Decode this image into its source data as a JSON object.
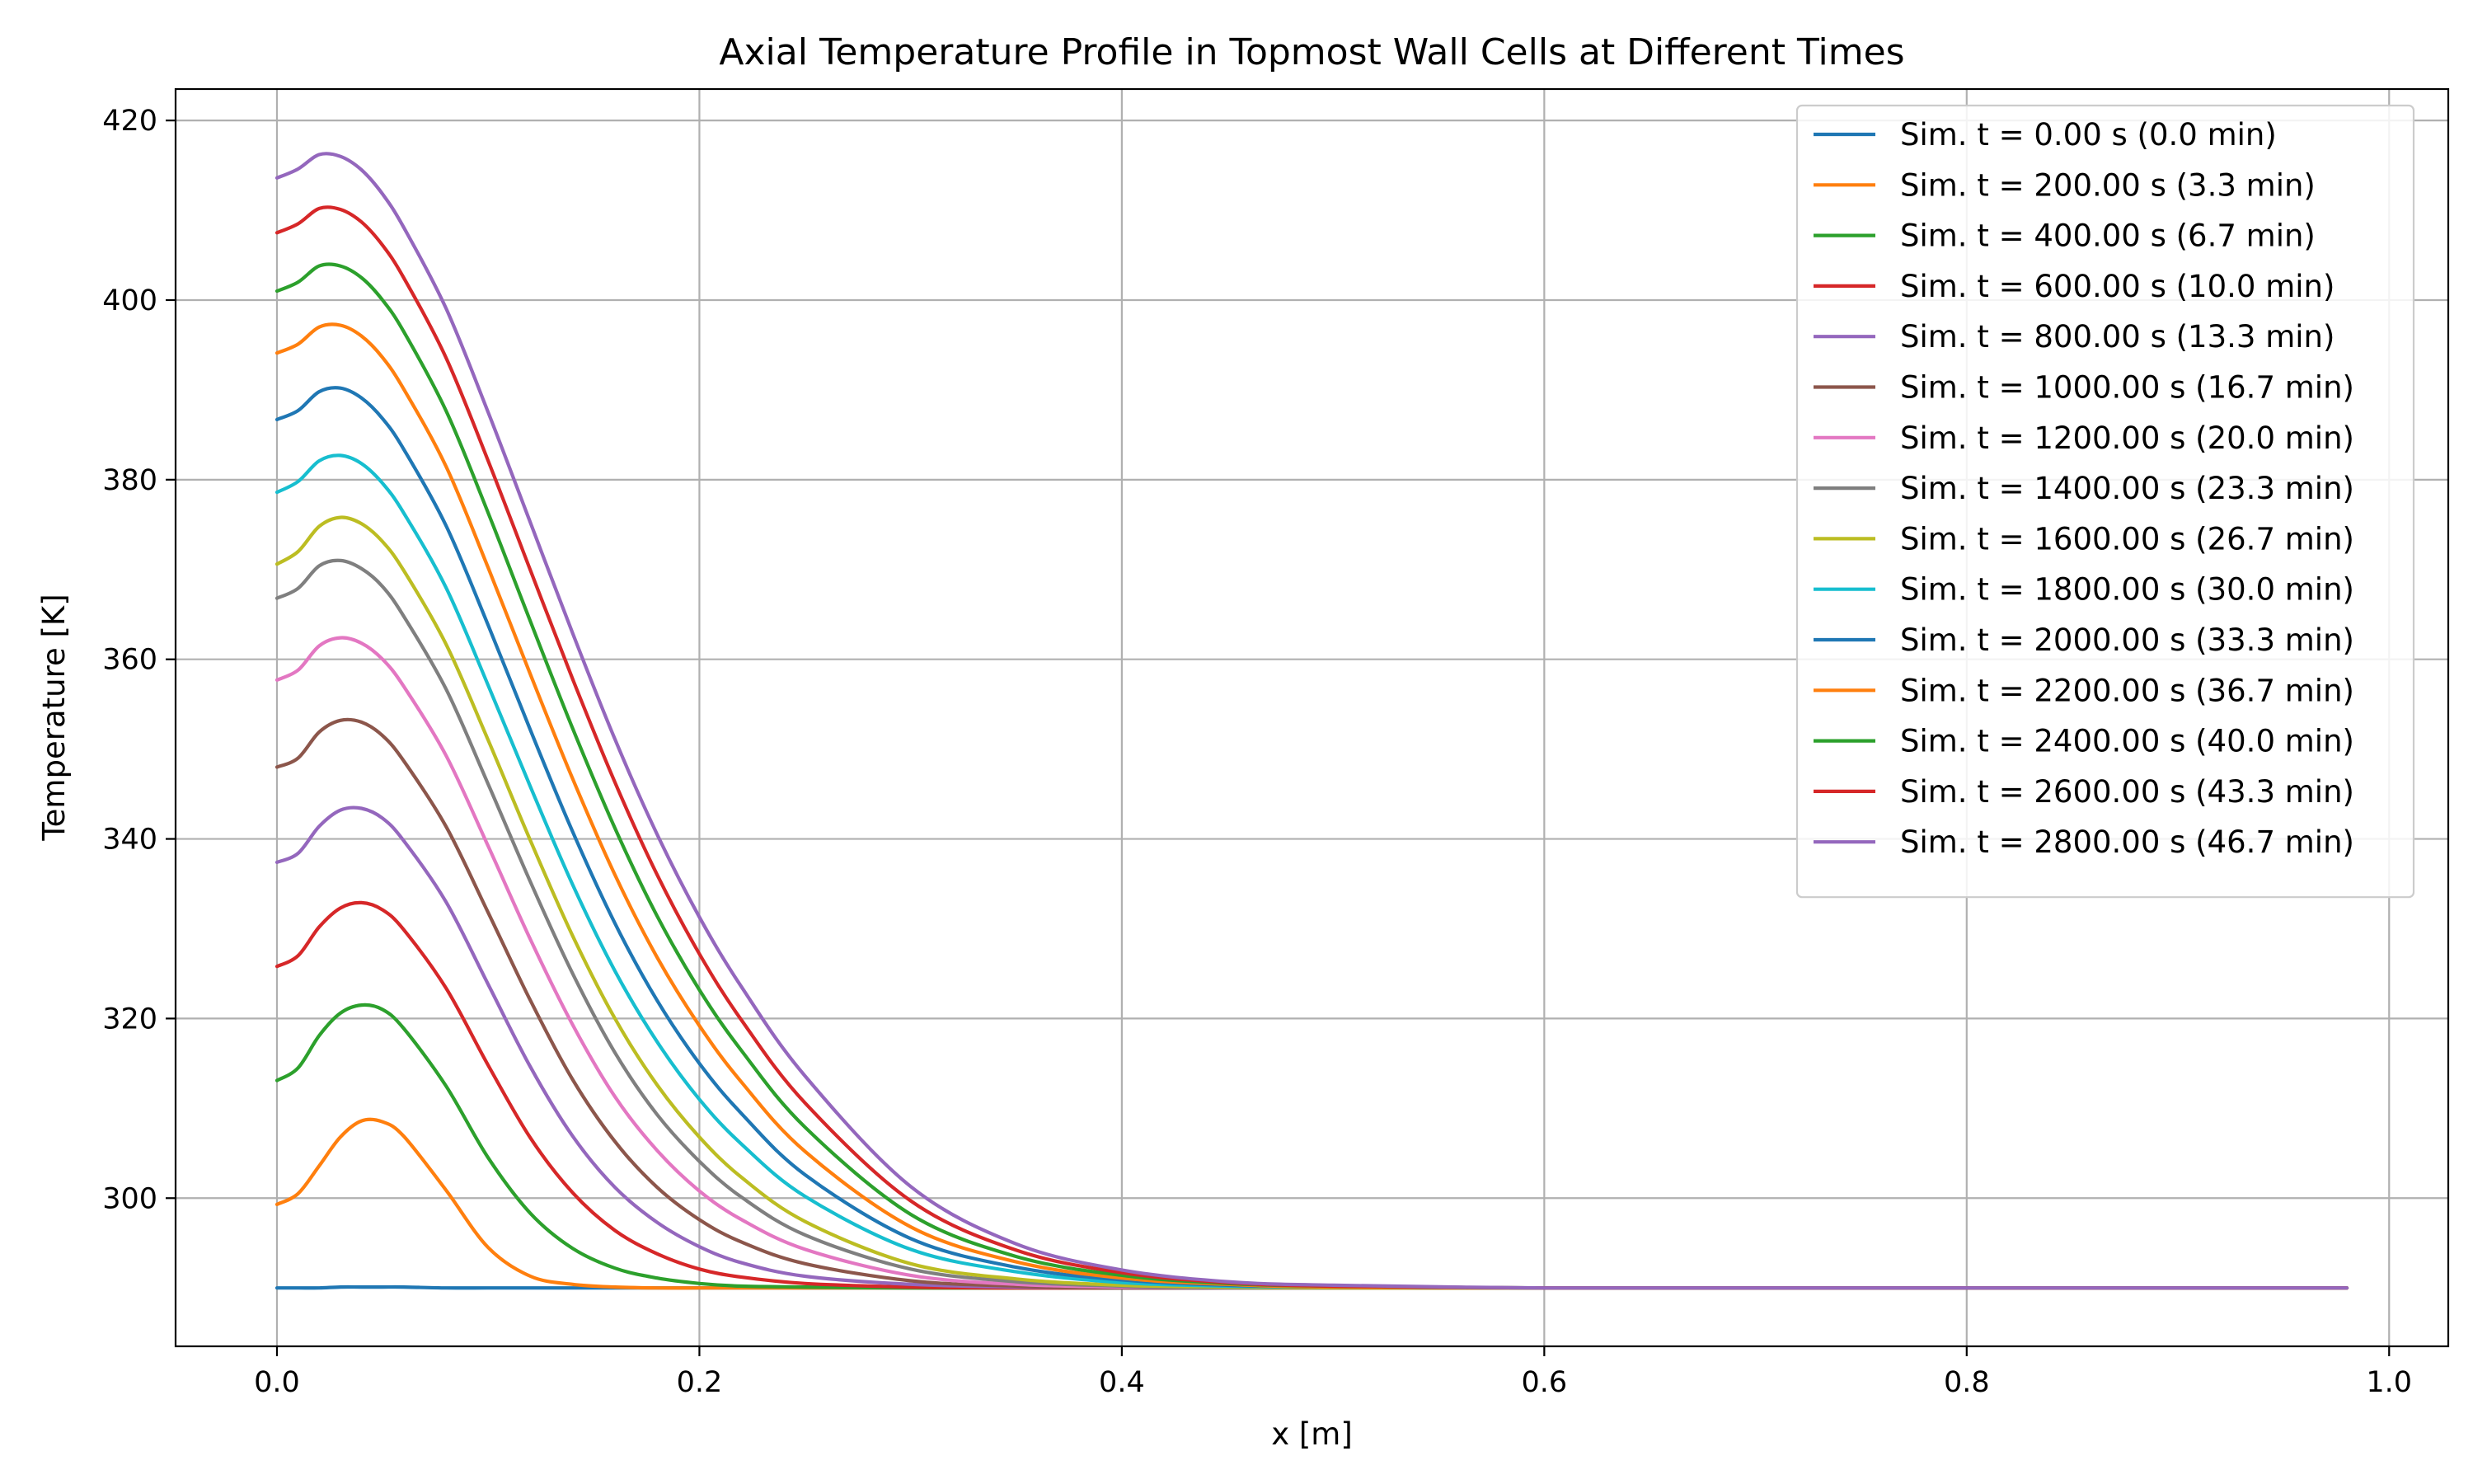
{
  "chart_data": {
    "type": "line",
    "title": "Axial Temperature Profile in Topmost Wall Cells at Different Times",
    "xlabel": "x [m]",
    "ylabel": "Temperature [K]",
    "xlim": [
      -0.048,
      1.028
    ],
    "ylim": [
      283.5,
      423.5
    ],
    "xticks": [
      0.0,
      0.2,
      0.4,
      0.6,
      0.8,
      1.0
    ],
    "xtick_labels": [
      "0.0",
      "0.2",
      "0.4",
      "0.6",
      "0.8",
      "1.0"
    ],
    "yticks": [
      300,
      320,
      340,
      360,
      380,
      400,
      420
    ],
    "ytick_labels": [
      "300",
      "320",
      "340",
      "360",
      "380",
      "400",
      "420"
    ],
    "grid": true,
    "legend_position": "top-right",
    "x": [
      0,
      0.01,
      0.02,
      0.03,
      0.04,
      0.05,
      0.06,
      0.08,
      0.1,
      0.12,
      0.14,
      0.16,
      0.18,
      0.2,
      0.22,
      0.25,
      0.3,
      0.35,
      0.4,
      0.45,
      0.5,
      0.6,
      0.7,
      0.8,
      0.9,
      0.98
    ],
    "series": [
      {
        "name": "Sim. t = 0.00 s (0.0 min)",
        "color": "#1f77b4",
        "values": [
          290.0,
          290.0,
          290.0,
          290.1,
          290.1,
          290.1,
          290.1,
          290.0,
          290.0,
          290.0,
          290.0,
          290.0,
          290.0,
          290.0,
          290.0,
          290.0,
          290.0,
          290.0,
          290.0,
          290.0,
          290.0,
          290.0,
          290.0,
          290.0,
          290.0,
          290.0
        ]
      },
      {
        "name": "Sim. t = 200.00 s (3.3 min)",
        "color": "#ff7f0e",
        "values": [
          299.3,
          300.5,
          303.6,
          306.8,
          308.6,
          308.5,
          306.9,
          300.9,
          294.5,
          291.3,
          290.4,
          290.1,
          290.0,
          290.0,
          290.0,
          290.0,
          290.0,
          290.0,
          290.0,
          290.0,
          290.0,
          290.0,
          290.0,
          290.0,
          290.0,
          290.0
        ]
      },
      {
        "name": "Sim. t = 400.00 s (6.7 min)",
        "color": "#2ca02c",
        "values": [
          313.1,
          314.5,
          318.1,
          320.6,
          321.5,
          321.0,
          318.9,
          312.5,
          304.5,
          298.3,
          294.4,
          292.2,
          291.1,
          290.5,
          290.2,
          290.1,
          290.0,
          290.0,
          290.0,
          290.0,
          290.0,
          290.0,
          290.0,
          290.0,
          290.0,
          290.0
        ]
      },
      {
        "name": "Sim. t = 600.00 s (10.0 min)",
        "color": "#d62728",
        "values": [
          325.8,
          327.0,
          330.2,
          332.3,
          332.9,
          332.1,
          329.9,
          323.4,
          314.8,
          306.7,
          300.6,
          296.4,
          293.8,
          292.1,
          291.2,
          290.5,
          290.1,
          290.0,
          290.0,
          290.0,
          290.0,
          290.0,
          290.0,
          290.0,
          290.0,
          290.0
        ]
      },
      {
        "name": "Sim. t = 800.00 s (13.3 min)",
        "color": "#9467bd",
        "values": [
          337.4,
          338.4,
          341.4,
          343.2,
          343.4,
          342.3,
          339.8,
          333.0,
          323.8,
          314.6,
          306.9,
          301.2,
          297.3,
          294.6,
          292.8,
          291.3,
          290.4,
          290.1,
          290.0,
          290.0,
          290.0,
          290.0,
          290.0,
          290.0,
          290.0,
          290.0
        ]
      },
      {
        "name": "Sim. t = 1000.00 s (16.7 min)",
        "color": "#8c564b",
        "values": [
          348.0,
          349.0,
          351.9,
          353.2,
          353.0,
          351.5,
          348.7,
          341.4,
          331.8,
          322.0,
          313.2,
          306.3,
          301.2,
          297.6,
          295.1,
          292.7,
          290.8,
          290.2,
          290.0,
          290.0,
          290.0,
          290.0,
          290.0,
          290.0,
          290.0,
          290.0
        ]
      },
      {
        "name": "Sim. t = 1200.00 s (20.0 min)",
        "color": "#e377c2",
        "values": [
          357.7,
          358.8,
          361.5,
          362.4,
          361.8,
          360.0,
          357.0,
          349.3,
          339.2,
          328.8,
          319.3,
          311.3,
          305.3,
          300.8,
          297.6,
          294.3,
          291.4,
          290.4,
          290.1,
          290.0,
          290.0,
          290.0,
          290.0,
          290.0,
          290.0,
          290.0
        ]
      },
      {
        "name": "Sim. t = 1400.00 s (23.3 min)",
        "color": "#7f7f7f",
        "values": [
          366.8,
          367.9,
          370.4,
          371.0,
          370.1,
          368.1,
          364.8,
          356.7,
          346.1,
          335.2,
          325.0,
          316.2,
          309.3,
          304.1,
          300.1,
          295.9,
          292.1,
          290.7,
          290.2,
          290.0,
          290.0,
          290.0,
          290.0,
          290.0,
          290.0,
          290.0
        ]
      },
      {
        "name": "Sim. t = 1600.00 s (26.7 min)",
        "color": "#bcbd22",
        "values": [
          370.6,
          372.0,
          374.8,
          375.8,
          375.1,
          373.1,
          369.9,
          361.7,
          351.0,
          339.8,
          329.2,
          320.0,
          312.6,
          306.8,
          302.3,
          297.4,
          292.7,
          291.0,
          290.3,
          290.1,
          290.0,
          290.0,
          290.0,
          290.0,
          290.0,
          290.0
        ]
      },
      {
        "name": "Sim. t = 1800.00 s (30.0 min)",
        "color": "#17becf",
        "values": [
          378.6,
          379.8,
          382.1,
          382.7,
          381.8,
          379.6,
          376.3,
          368.0,
          357.1,
          345.8,
          334.9,
          325.3,
          317.4,
          311.0,
          306.0,
          300.2,
          294.3,
          291.8,
          290.6,
          290.2,
          290.1,
          290.0,
          290.0,
          290.0,
          290.0,
          290.0
        ]
      },
      {
        "name": "Sim. t = 2000.00 s (33.3 min)",
        "color": "#1f77b4",
        "values": [
          386.7,
          387.7,
          389.8,
          390.2,
          389.1,
          386.8,
          383.4,
          374.9,
          363.8,
          352.1,
          340.8,
          330.6,
          322.0,
          315.0,
          309.4,
          302.6,
          295.5,
          292.3,
          290.9,
          290.3,
          290.1,
          290.0,
          290.0,
          290.0,
          290.0,
          290.0
        ]
      },
      {
        "name": "Sim. t = 2200.00 s (36.7 min)",
        "color": "#ff7f0e",
        "values": [
          394.1,
          395.1,
          397.0,
          397.2,
          396.0,
          393.6,
          390.1,
          381.5,
          370.2,
          358.3,
          346.7,
          336.0,
          326.8,
          319.2,
          312.9,
          305.2,
          296.8,
          292.9,
          291.1,
          290.4,
          290.1,
          290.0,
          290.0,
          290.0,
          290.0,
          290.0
        ]
      },
      {
        "name": "Sim. t = 2400.00 s (40.0 min)",
        "color": "#2ca02c",
        "values": [
          401.0,
          402.0,
          403.8,
          403.8,
          402.5,
          400.0,
          396.5,
          387.7,
          376.3,
          364.2,
          352.3,
          341.2,
          331.4,
          323.2,
          316.4,
          307.9,
          298.2,
          293.5,
          291.4,
          290.5,
          290.2,
          290.0,
          290.0,
          290.0,
          290.0,
          290.0
        ]
      },
      {
        "name": "Sim. t = 2600.00 s (43.3 min)",
        "color": "#d62728",
        "values": [
          407.5,
          408.5,
          410.2,
          410.1,
          408.7,
          406.1,
          402.5,
          393.6,
          382.1,
          369.9,
          357.8,
          346.3,
          336.0,
          327.2,
          319.8,
          310.6,
          299.7,
          294.2,
          291.7,
          290.6,
          290.2,
          290.0,
          290.0,
          290.0,
          290.0,
          290.0
        ]
      },
      {
        "name": "Sim. t = 2800.00 s (46.7 min)",
        "color": "#9467bd",
        "values": [
          413.6,
          414.6,
          416.2,
          416.0,
          414.5,
          411.8,
          408.1,
          399.1,
          387.5,
          375.2,
          362.9,
          351.1,
          340.5,
          331.3,
          323.5,
          313.6,
          301.3,
          294.9,
          292.0,
          290.7,
          290.3,
          290.0,
          290.0,
          290.0,
          290.0,
          290.0
        ]
      }
    ]
  }
}
